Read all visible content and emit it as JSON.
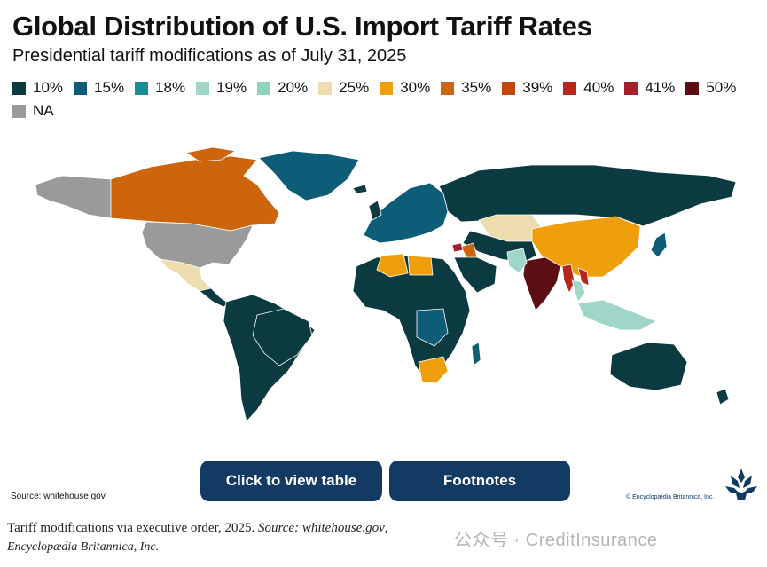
{
  "title": "Global Distribution of U.S. Import Tariff Rates",
  "subtitle": "Presidential tariff modifications as of July 31, 2025",
  "legend": [
    {
      "label": "10%",
      "color": "#0b3a41"
    },
    {
      "label": "15%",
      "color": "#0d5c78"
    },
    {
      "label": "18%",
      "color": "#1b8d98"
    },
    {
      "label": "19%",
      "color": "#9fd6c8"
    },
    {
      "label": "20%",
      "color": "#90d3bb"
    },
    {
      "label": "25%",
      "color": "#ecdcae"
    },
    {
      "label": "30%",
      "color": "#ef9f0b"
    },
    {
      "label": "35%",
      "color": "#cc650b"
    },
    {
      "label": "39%",
      "color": "#c4460f"
    },
    {
      "label": "40%",
      "color": "#b7251c"
    },
    {
      "label": "41%",
      "color": "#a51f2e"
    },
    {
      "label": "50%",
      "color": "#5b0f12"
    },
    {
      "label": "NA",
      "color": "#9a9a9a"
    }
  ],
  "map": {
    "regions": [
      {
        "name": "Alaska",
        "rate": "NA"
      },
      {
        "name": "Canada",
        "rate": "35%"
      },
      {
        "name": "Greenland",
        "rate": "15%"
      },
      {
        "name": "United States",
        "rate": "NA"
      },
      {
        "name": "Mexico",
        "rate": "25%"
      },
      {
        "name": "Central America",
        "rate": "10%"
      },
      {
        "name": "South America",
        "rate": "10%"
      },
      {
        "name": "Brazil",
        "rate": "10%"
      },
      {
        "name": "Europe",
        "rate": "15%"
      },
      {
        "name": "Russia",
        "rate": "10%"
      },
      {
        "name": "Kazakhstan",
        "rate": "25%"
      },
      {
        "name": "China",
        "rate": "30%"
      },
      {
        "name": "India",
        "rate": "50%"
      },
      {
        "name": "Pakistan",
        "rate": "19%"
      },
      {
        "name": "Myanmar",
        "rate": "40%"
      },
      {
        "name": "Laos",
        "rate": "40%"
      },
      {
        "name": "Thailand",
        "rate": "19%"
      },
      {
        "name": "Iraq",
        "rate": "35%"
      },
      {
        "name": "Syria",
        "rate": "41%"
      },
      {
        "name": "Algeria",
        "rate": "30%"
      },
      {
        "name": "Libya",
        "rate": "30%"
      },
      {
        "name": "South Africa",
        "rate": "30%"
      },
      {
        "name": "Africa",
        "rate": "10%"
      },
      {
        "name": "Southeast Asia",
        "rate": "19%"
      },
      {
        "name": "Australia",
        "rate": "10%"
      }
    ]
  },
  "source_note": "Source: whitehouse.gov",
  "buttons": {
    "table": "Click to view table",
    "footnotes": "Footnotes"
  },
  "copyright": "© Encyclopædia Britannica, Inc.",
  "caption": {
    "text": "Tariff modifications via executive order, 2025. ",
    "source_label": "Source: whitehouse.gov",
    "source_end": ",",
    "line2": "Encyclopædia Britannica, Inc."
  },
  "watermark": "公众号 · CreditInsurance"
}
